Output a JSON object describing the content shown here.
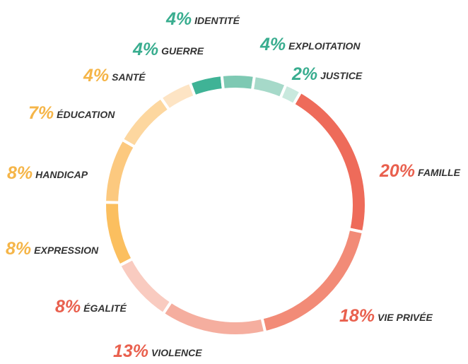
{
  "chart_data": {
    "type": "donut",
    "categories": [
      "FAMILLE",
      "VIE PRIVÉE",
      "VIOLENCE",
      "ÉGALITÉ",
      "EXPRESSION",
      "HANDICAP",
      "ÉDUCATION",
      "SANTÉ",
      "GUERRE",
      "IDENTITÉ",
      "EXPLOITATION",
      "JUSTICE"
    ],
    "values": [
      20,
      18,
      13,
      8,
      8,
      8,
      7,
      4,
      4,
      4,
      4,
      2
    ],
    "value_labels": [
      "20%",
      "18%",
      "13%",
      "8%",
      "8%",
      "8%",
      "7%",
      "4%",
      "4%",
      "4%",
      "4%",
      "2%"
    ],
    "colors": [
      "#ee6b5a",
      "#f28b77",
      "#f5ae9f",
      "#f9cbc0",
      "#fbbf5f",
      "#fcc97f",
      "#fdd79f",
      "#fde4c4",
      "#3fb396",
      "#7ec9b3",
      "#a6d9c9",
      "#c9e9de"
    ],
    "label_colors": [
      "#e9604e",
      "#e9604e",
      "#e9604e",
      "#e9604e",
      "#f5b548",
      "#f5b548",
      "#f5b548",
      "#f5b548",
      "#39ad8f",
      "#39ad8f",
      "#39ad8f",
      "#39ad8f"
    ]
  }
}
